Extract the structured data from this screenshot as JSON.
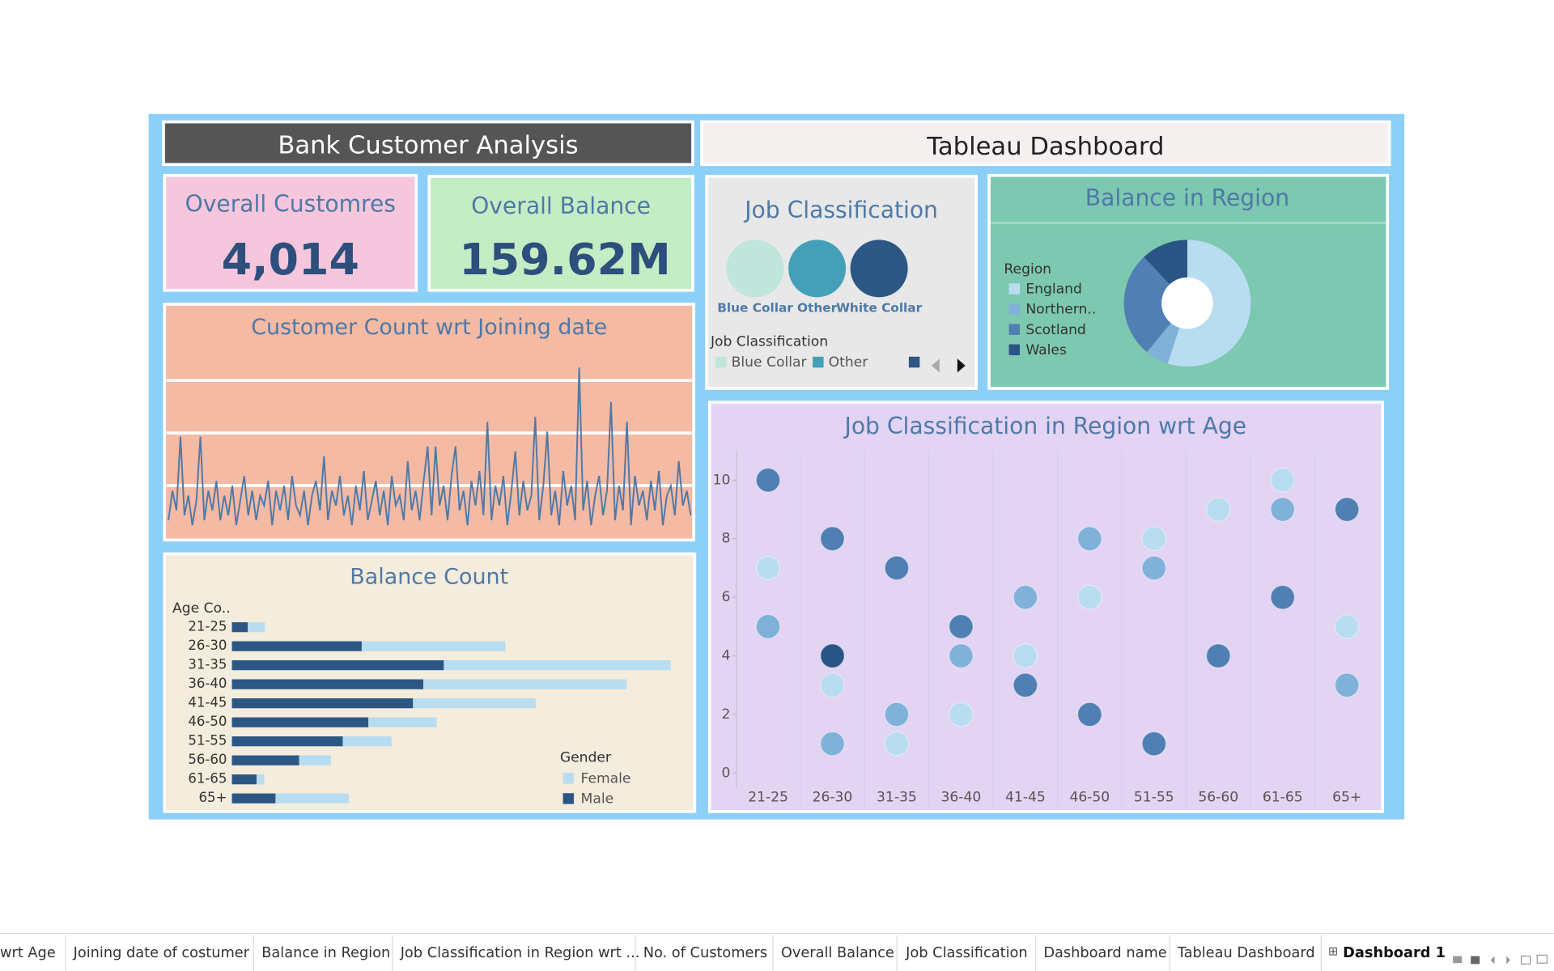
{
  "header": {
    "title": "Bank Customer Analysis",
    "subtitle": "Tableau Dashboard"
  },
  "kpis": [
    {
      "title": "Overall Customres",
      "value": "4,014"
    },
    {
      "title": "Overall Balance",
      "value": "159.62M"
    }
  ],
  "chart_data": [
    {
      "type": "circles",
      "title": "Job Classification",
      "legend_title": "Job Classification",
      "categories": [
        "Blue Collar",
        "Other",
        "White Collar"
      ],
      "colors": [
        "#bfe5dc",
        "#44a0b9",
        "#2c5784"
      ]
    },
    {
      "type": "pie",
      "title": "Balance in Region",
      "legend_title": "Region",
      "categories": [
        "England",
        "Northern..",
        "Scotland",
        "Wales"
      ],
      "values": [
        55,
        6,
        27,
        12
      ],
      "colors": [
        "#b9ddf0",
        "#7fb1d9",
        "#4f7fb3",
        "#2a5586"
      ]
    },
    {
      "type": "line",
      "title": "Customer Count wrt Joining date",
      "color": "#4e79a7",
      "ylim": [
        0,
        35
      ],
      "values": [
        3,
        9,
        5,
        20,
        4,
        8,
        2,
        7,
        20,
        3,
        9,
        5,
        11,
        3,
        8,
        4,
        10,
        2,
        7,
        12,
        4,
        9,
        3,
        8,
        6,
        11,
        2,
        9,
        5,
        10,
        3,
        12,
        6,
        4,
        9,
        2,
        8,
        11,
        5,
        16,
        3,
        9,
        6,
        12,
        4,
        8,
        2,
        10,
        5,
        13,
        3,
        7,
        11,
        4,
        9,
        2,
        12,
        6,
        8,
        3,
        15,
        5,
        9,
        3,
        11,
        18,
        4,
        18,
        6,
        10,
        3,
        12,
        18,
        5,
        9,
        2,
        11,
        6,
        13,
        4,
        23,
        3,
        10,
        6,
        12,
        2,
        9,
        17,
        4,
        11,
        5,
        8,
        24,
        3,
        10,
        21,
        4,
        9,
        2,
        13,
        6,
        10,
        3,
        34,
        5,
        11,
        2,
        8,
        12,
        4,
        9,
        27,
        3,
        10,
        5,
        23,
        2,
        12,
        6,
        9,
        3,
        11,
        5,
        13,
        2,
        8,
        10,
        4,
        15,
        6,
        9,
        4
      ]
    },
    {
      "type": "bar",
      "title": "Balance Count",
      "axis_label": "Age Co..",
      "legend_title": "Gender",
      "categories": [
        "21-25",
        "26-30",
        "31-35",
        "36-40",
        "41-45",
        "46-50",
        "51-55",
        "56-60",
        "61-65",
        "65+"
      ],
      "xlim": [
        0,
        900
      ],
      "series": [
        {
          "name": "Female",
          "color": "#b9ddf0",
          "values": [
            33,
            280,
            442,
            396,
            239,
            133,
            95,
            62,
            15,
            143
          ]
        },
        {
          "name": "Male",
          "color": "#2c5784",
          "values": [
            31,
            253,
            413,
            373,
            353,
            266,
            216,
            131,
            48,
            85
          ]
        }
      ]
    },
    {
      "type": "scatter",
      "title": "Job Classification in Region wrt Age",
      "categories": [
        "21-25",
        "26-30",
        "31-35",
        "36-40",
        "41-45",
        "46-50",
        "51-55",
        "56-60",
        "61-65",
        "65+"
      ],
      "ylim": [
        -0.5,
        11
      ],
      "yticks": [
        0,
        2,
        4,
        6,
        8,
        10
      ],
      "series": [
        {
          "name": "England",
          "color": "#b9ddf0",
          "x": [
            "21-25",
            "26-30",
            "31-35",
            "36-40",
            "41-45",
            "46-50",
            "51-55",
            "56-60",
            "61-65",
            "65+"
          ],
          "values": [
            7,
            3,
            1,
            2,
            4,
            6,
            8,
            9,
            10,
            5
          ]
        },
        {
          "name": "Northern..",
          "color": "#7fb1d9",
          "x": [
            "21-25",
            "26-30",
            "31-35",
            "36-40",
            "41-45",
            "46-50",
            "51-55",
            "61-65",
            "65+"
          ],
          "values": [
            5,
            1,
            2,
            4,
            6,
            8,
            7,
            9,
            3
          ]
        },
        {
          "name": "Scotland",
          "color": "#4f7fb3",
          "x": [
            "21-25",
            "26-30",
            "31-35",
            "36-40",
            "41-45",
            "46-50",
            "51-55",
            "56-60",
            "61-65",
            "65+"
          ],
          "values": [
            10,
            8,
            7,
            5,
            3,
            2,
            1,
            4,
            6,
            9
          ]
        },
        {
          "name": "Wales",
          "color": "#2a5586",
          "x": [
            "26-30"
          ],
          "values": [
            4
          ]
        }
      ]
    }
  ],
  "tabs": [
    "wrt Age",
    "Joining date of costumer",
    "Balance in Region",
    "Job Classification in Region wrt ...",
    "No. of Customers",
    "Overall Balance",
    "Job Classification",
    "Dashboard name",
    "Tableau Dashboard",
    "Dashboard 1"
  ]
}
